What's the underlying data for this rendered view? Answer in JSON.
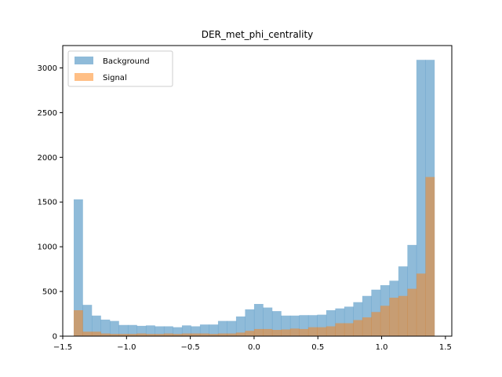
{
  "chart_data": {
    "type": "bar",
    "title": "DER_met_phi_centrality",
    "xlabel": "",
    "ylabel": "",
    "xlim": [
      -1.5,
      1.55
    ],
    "ylim": [
      0,
      3250
    ],
    "xticks": [
      -1.5,
      -1.0,
      -0.5,
      0.0,
      0.5,
      1.0,
      1.5
    ],
    "xtick_labels": [
      "−1.5",
      "−1.0",
      "−0.5",
      "0.0",
      "0.5",
      "1.0",
      "1.5"
    ],
    "yticks": [
      0,
      500,
      1000,
      1500,
      2000,
      2500,
      3000
    ],
    "ytick_labels": [
      "0",
      "500",
      "1000",
      "1500",
      "2000",
      "2500",
      "3000"
    ],
    "bins": {
      "start": -1.414,
      "end": 1.414,
      "count": 40
    },
    "legend": {
      "placement": "upper-left"
    },
    "grid": false,
    "series": [
      {
        "name": "Background",
        "color": "#1f77b4",
        "opacity": 0.5,
        "values": [
          1530,
          350,
          230,
          185,
          170,
          125,
          125,
          115,
          120,
          110,
          110,
          100,
          120,
          110,
          130,
          130,
          170,
          170,
          220,
          300,
          360,
          320,
          280,
          230,
          230,
          235,
          235,
          240,
          290,
          310,
          330,
          380,
          450,
          520,
          570,
          620,
          780,
          1020,
          3090,
          3090
        ]
      },
      {
        "name": "Signal",
        "color": "#ff7f0e",
        "opacity": 0.5,
        "values": [
          290,
          50,
          50,
          30,
          25,
          25,
          25,
          30,
          25,
          25,
          30,
          25,
          30,
          30,
          30,
          25,
          30,
          30,
          40,
          60,
          80,
          80,
          70,
          75,
          85,
          80,
          100,
          100,
          110,
          145,
          145,
          180,
          210,
          270,
          340,
          430,
          450,
          530,
          700,
          1780
        ]
      }
    ]
  }
}
